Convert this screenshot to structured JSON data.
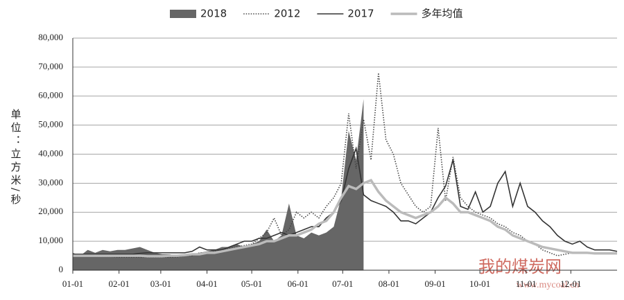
{
  "chart_data": {
    "type": "line",
    "y_label": "单位：立方米/秒",
    "x": [
      0,
      5,
      10,
      15,
      20,
      25,
      30,
      35,
      40,
      45,
      50,
      55,
      60,
      65,
      70,
      75,
      80,
      85,
      90,
      95,
      100,
      105,
      110,
      115,
      120,
      125,
      130,
      135,
      140,
      145,
      150,
      155,
      160,
      165,
      170,
      175,
      180,
      185,
      190,
      195,
      200,
      205,
      210,
      215,
      220,
      225,
      230,
      235,
      240,
      245,
      250,
      255,
      260,
      265,
      270,
      275,
      280,
      285,
      290,
      295,
      300,
      305,
      310,
      315,
      320,
      325,
      330,
      335,
      340,
      345,
      350,
      355,
      360,
      365
    ],
    "xlim": [
      0,
      365
    ],
    "xticks": [
      {
        "value": 0,
        "label": "01-01"
      },
      {
        "value": 31,
        "label": "02-01"
      },
      {
        "value": 59,
        "label": "03-01"
      },
      {
        "value": 90,
        "label": "04-01"
      },
      {
        "value": 120,
        "label": "05-01"
      },
      {
        "value": 151,
        "label": "06-01"
      },
      {
        "value": 181,
        "label": "07-01"
      },
      {
        "value": 212,
        "label": "08-01"
      },
      {
        "value": 243,
        "label": "09-01"
      },
      {
        "value": 273,
        "label": "10-01"
      },
      {
        "value": 304,
        "label": "11-01"
      },
      {
        "value": 334,
        "label": "12-01"
      }
    ],
    "ylim": [
      0,
      80000
    ],
    "yticks": [
      0,
      {
        "value": 10000,
        "label": "10,000"
      },
      {
        "value": 20000,
        "label": "20,000"
      },
      {
        "value": 30000,
        "label": "30,000"
      },
      {
        "value": 40000,
        "label": "40,000"
      },
      {
        "value": 50000,
        "label": "50,000"
      },
      {
        "value": 60000,
        "label": "60,000"
      },
      {
        "value": 70000,
        "label": "70,000"
      },
      {
        "value": 80000,
        "label": "80,000"
      }
    ],
    "grid": true,
    "legend": "top",
    "series": [
      {
        "name": "2018",
        "color": "#666666",
        "style": "area",
        "values": [
          6000,
          5000,
          7000,
          6000,
          7000,
          6500,
          7000,
          7000,
          7500,
          8000,
          7000,
          6000,
          5500,
          5500,
          5000,
          5500,
          5500,
          6000,
          6500,
          7000,
          8000,
          8000,
          9000,
          8000,
          9000,
          10000,
          14000,
          10000,
          12000,
          23000,
          12000,
          11000,
          13000,
          12000,
          13000,
          15000,
          25000,
          48000,
          38000,
          59000,
          null,
          null,
          null,
          null,
          null,
          null,
          null,
          null,
          null,
          null,
          null,
          null,
          null,
          null,
          null,
          null,
          null,
          null,
          null,
          null,
          null,
          null,
          null,
          null,
          null,
          null,
          null,
          null,
          null,
          null,
          null,
          null,
          null,
          null
        ]
      },
      {
        "name": "2012",
        "color": "#444444",
        "style": "dotted",
        "values": [
          5000,
          5000,
          5000,
          4800,
          4800,
          4800,
          4500,
          4500,
          4500,
          4500,
          4500,
          4500,
          4500,
          4500,
          4500,
          5000,
          5000,
          6000,
          6000,
          6500,
          7000,
          7500,
          8000,
          8500,
          9000,
          11000,
          13000,
          18000,
          12000,
          14000,
          20000,
          18000,
          20000,
          18000,
          22000,
          25000,
          30000,
          54000,
          35000,
          52000,
          38000,
          68000,
          45000,
          40000,
          30000,
          26000,
          22000,
          20000,
          22000,
          49000,
          24000,
          39000,
          25000,
          22000,
          20000,
          19000,
          18000,
          16000,
          15000,
          13000,
          12000,
          10000,
          9000,
          7000,
          6000,
          5000,
          5500,
          6000,
          6000,
          6000,
          6000,
          6000,
          6000,
          6000
        ]
      },
      {
        "name": "2017",
        "color": "#333333",
        "style": "solid",
        "values": [
          5500,
          5500,
          5500,
          5500,
          5500,
          5500,
          5500,
          5500,
          5500,
          5800,
          6000,
          6000,
          6000,
          6000,
          6000,
          6000,
          6500,
          8000,
          7000,
          7000,
          7000,
          8000,
          9000,
          10000,
          10000,
          11000,
          11000,
          12000,
          13000,
          12000,
          13000,
          14000,
          15000,
          15000,
          18000,
          20000,
          24000,
          35000,
          42000,
          26000,
          24000,
          23000,
          22000,
          20000,
          17000,
          17000,
          16000,
          18000,
          20000,
          25000,
          29000,
          38000,
          22000,
          21000,
          27000,
          20000,
          22000,
          30000,
          34000,
          22000,
          30000,
          22000,
          20000,
          17000,
          15000,
          12000,
          10000,
          9000,
          10000,
          8000,
          7000,
          7000,
          7000,
          6500
        ]
      },
      {
        "name": "多年均值",
        "color": "#bbbbbb",
        "style": "thick",
        "values": [
          5000,
          5000,
          5000,
          5000,
          5000,
          5000,
          5000,
          5000,
          5000,
          5000,
          4800,
          4800,
          4800,
          5000,
          5000,
          5200,
          5500,
          5500,
          6000,
          6000,
          6500,
          7000,
          7500,
          8000,
          8500,
          9000,
          10000,
          10000,
          11000,
          12000,
          12000,
          13000,
          14000,
          16000,
          17000,
          20000,
          25000,
          29000,
          28000,
          30000,
          31000,
          27000,
          24000,
          22000,
          20000,
          19000,
          18000,
          19000,
          20000,
          22000,
          25000,
          23000,
          20000,
          20000,
          19000,
          18000,
          17000,
          15000,
          14000,
          12000,
          11000,
          10000,
          9000,
          8000,
          7500,
          7000,
          6500,
          6000,
          6000,
          6000,
          5800,
          5800,
          5800,
          5800
        ]
      }
    ],
    "watermark": {
      "text": "我的煤炭网",
      "url": "www.mycoal.cn"
    }
  }
}
